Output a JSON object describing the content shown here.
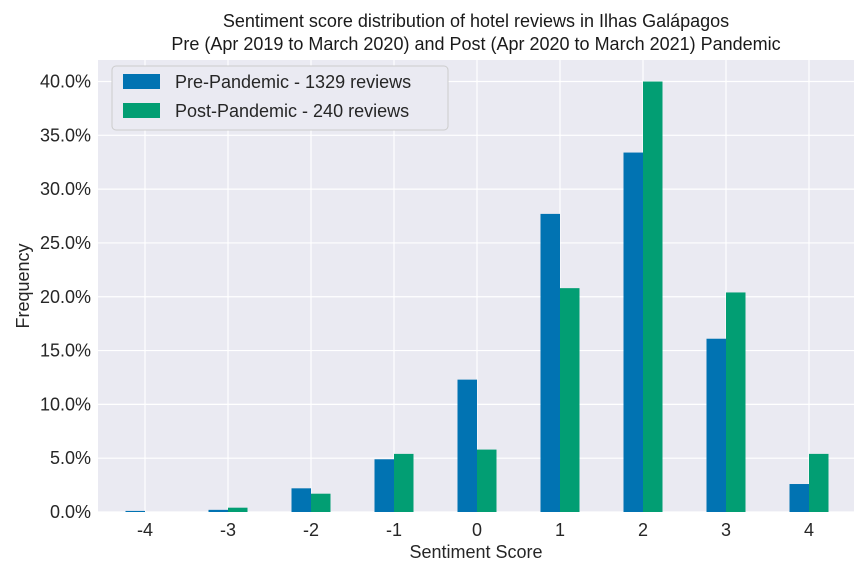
{
  "chart_data": {
    "type": "bar",
    "title_lines": [
      "Sentiment score distribution of hotel reviews in Ilhas Galápagos",
      "Pre (Apr 2019 to March 2020) and Post (Apr 2020 to March 2021) Pandemic"
    ],
    "xlabel": "Sentiment Score",
    "ylabel": "Frequency",
    "categories": [
      "-4",
      "-3",
      "-2",
      "-1",
      "0",
      "1",
      "2",
      "3",
      "4"
    ],
    "series": [
      {
        "name": "Pre-Pandemic - 1329 reviews",
        "color": "#0173b2",
        "values": [
          0.1,
          0.2,
          2.2,
          4.9,
          12.3,
          27.7,
          33.4,
          16.1,
          2.6
        ]
      },
      {
        "name": "Post-Pandemic - 240 reviews",
        "color": "#029e73",
        "values": [
          0.0,
          0.4,
          1.7,
          5.4,
          5.8,
          20.8,
          40.0,
          20.4,
          5.4
        ]
      }
    ],
    "yticks": [
      0,
      5,
      10,
      15,
      20,
      25,
      30,
      35,
      40
    ],
    "ytick_format": "percent-1-decimal",
    "ylim": [
      0,
      42
    ],
    "grid": true,
    "legend_position": "top-left",
    "background": "#eaeaf2",
    "grid_color": "#ffffff"
  }
}
